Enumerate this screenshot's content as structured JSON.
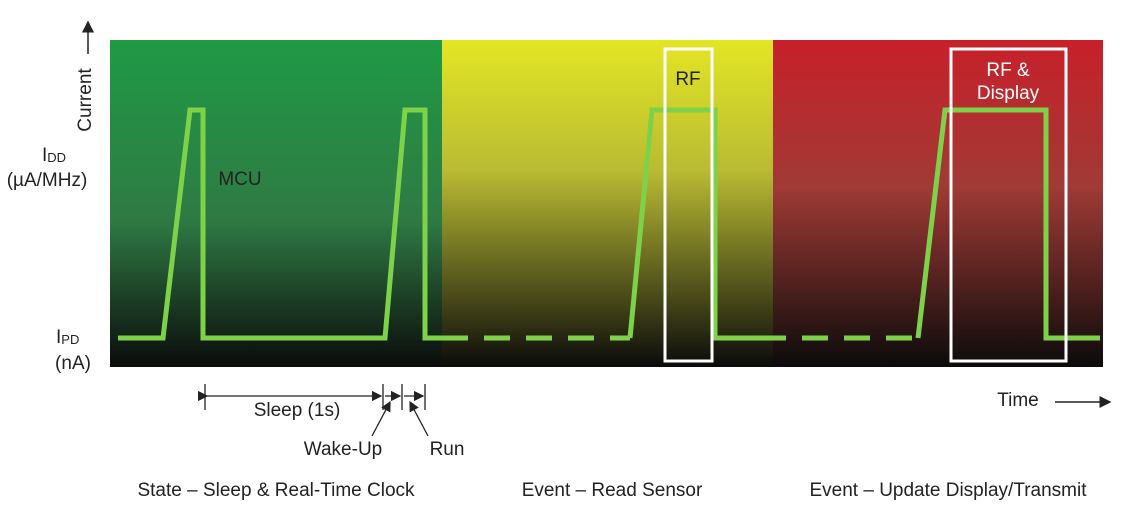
{
  "axis": {
    "y_label": "Current",
    "x_label": "Time",
    "idd": {
      "symbol": "I",
      "subscript": "DD",
      "unit": "(µA/MHz)"
    },
    "ipd": {
      "symbol": "I",
      "subscript": "PD",
      "unit": "(nA)"
    }
  },
  "panel": {
    "mcu": "MCU",
    "rf": "RF",
    "rf_display": [
      "RF &",
      "Display"
    ]
  },
  "timing": {
    "sleep": "Sleep (1s)",
    "wake_up": "Wake-Up",
    "run": "Run"
  },
  "states": [
    "State – Sleep & Real-Time Clock",
    "Event – Read Sensor",
    "Event – Update Display/Transmit"
  ]
}
